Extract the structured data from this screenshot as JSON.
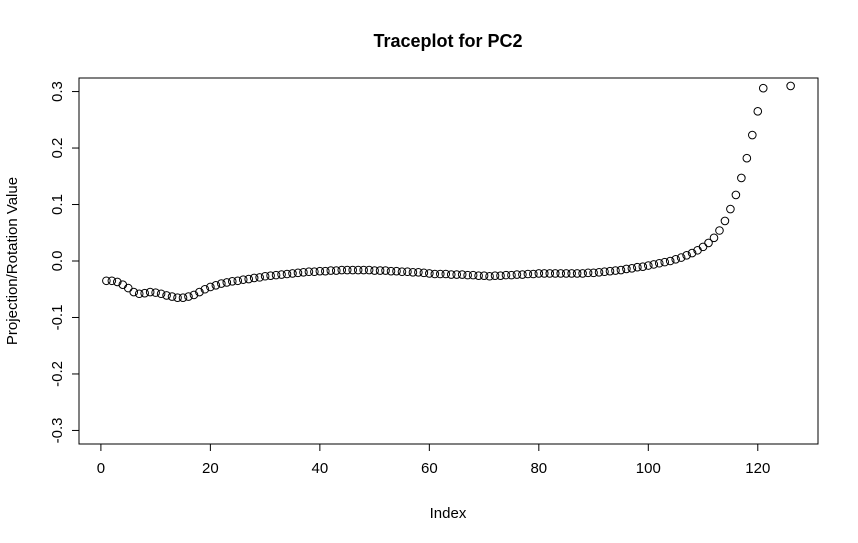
{
  "chart_data": {
    "type": "scatter",
    "title": "Traceplot for PC2",
    "x_label": "Index",
    "y_label": "Projection/Rotation Value",
    "x": [
      1,
      2,
      3,
      4,
      5,
      6,
      7,
      8,
      9,
      10,
      11,
      12,
      13,
      14,
      15,
      16,
      17,
      18,
      19,
      20,
      21,
      22,
      23,
      24,
      25,
      26,
      27,
      28,
      29,
      30,
      31,
      32,
      33,
      34,
      35,
      36,
      37,
      38,
      39,
      40,
      41,
      42,
      43,
      44,
      45,
      46,
      47,
      48,
      49,
      50,
      51,
      52,
      53,
      54,
      55,
      56,
      57,
      58,
      59,
      60,
      61,
      62,
      63,
      64,
      65,
      66,
      67,
      68,
      69,
      70,
      71,
      72,
      73,
      74,
      75,
      76,
      77,
      78,
      79,
      80,
      81,
      82,
      83,
      84,
      85,
      86,
      87,
      88,
      89,
      90,
      91,
      92,
      93,
      94,
      95,
      96,
      97,
      98,
      99,
      100,
      101,
      102,
      103,
      104,
      105,
      106,
      107,
      108,
      109,
      110,
      111,
      112,
      113,
      114,
      115,
      116,
      117,
      118,
      119,
      120,
      121,
      126
    ],
    "values": [
      -0.035,
      -0.035,
      -0.037,
      -0.042,
      -0.048,
      -0.055,
      -0.058,
      -0.057,
      -0.055,
      -0.056,
      -0.058,
      -0.061,
      -0.063,
      -0.065,
      -0.065,
      -0.063,
      -0.06,
      -0.055,
      -0.05,
      -0.046,
      -0.043,
      -0.04,
      -0.038,
      -0.036,
      -0.035,
      -0.033,
      -0.032,
      -0.03,
      -0.029,
      -0.027,
      -0.026,
      -0.025,
      -0.024,
      -0.023,
      -0.022,
      -0.021,
      -0.02,
      -0.019,
      -0.019,
      -0.018,
      -0.018,
      -0.017,
      -0.017,
      -0.016,
      -0.016,
      -0.016,
      -0.016,
      -0.016,
      -0.016,
      -0.017,
      -0.017,
      -0.017,
      -0.018,
      -0.018,
      -0.019,
      -0.019,
      -0.02,
      -0.02,
      -0.021,
      -0.022,
      -0.023,
      -0.023,
      -0.023,
      -0.024,
      -0.024,
      -0.024,
      -0.025,
      -0.025,
      -0.026,
      -0.026,
      -0.027,
      -0.026,
      -0.026,
      -0.025,
      -0.025,
      -0.024,
      -0.024,
      -0.023,
      -0.023,
      -0.022,
      -0.022,
      -0.022,
      -0.022,
      -0.022,
      -0.022,
      -0.022,
      -0.022,
      -0.022,
      -0.021,
      -0.021,
      -0.02,
      -0.019,
      -0.018,
      -0.017,
      -0.016,
      -0.014,
      -0.013,
      -0.011,
      -0.01,
      -0.008,
      -0.006,
      -0.004,
      -0.002,
      0.0,
      0.003,
      0.006,
      0.01,
      0.014,
      0.019,
      0.025,
      0.032,
      0.041,
      0.054,
      0.071,
      0.092,
      0.117,
      0.147,
      0.182,
      0.223,
      0.265,
      0.306,
      0.31
    ],
    "color": "#000000",
    "xlim": [
      -4,
      131
    ],
    "xticks": [
      0,
      20,
      40,
      60,
      80,
      100,
      120
    ],
    "ylim": [
      -0.324,
      0.324
    ],
    "yticks": [
      -0.3,
      -0.2,
      -0.1,
      {
        "value": 0,
        "label": "0.0"
      },
      0.1,
      0.2,
      0.3
    ]
  }
}
